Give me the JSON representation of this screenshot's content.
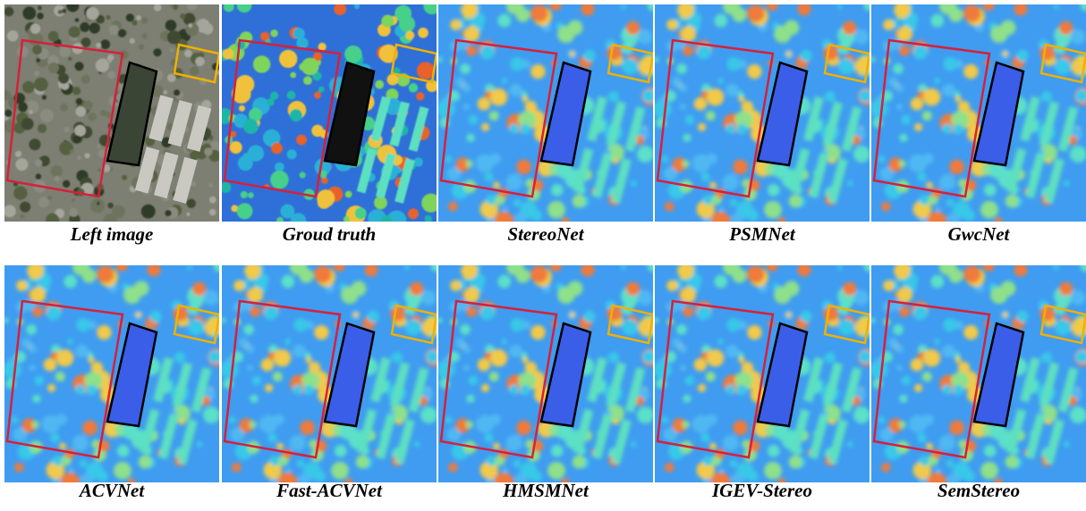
{
  "panels": [
    {
      "caption": "Left image"
    },
    {
      "caption": "Groud truth"
    },
    {
      "caption": "StereoNet"
    },
    {
      "caption": "PSMNet"
    },
    {
      "caption": "GwcNet"
    },
    {
      "caption": "ACVNet"
    },
    {
      "caption": "Fast-ACVNet"
    },
    {
      "caption": "HMSMNet"
    },
    {
      "caption": "IGEV-Stereo"
    },
    {
      "caption": "SemStereo"
    }
  ]
}
